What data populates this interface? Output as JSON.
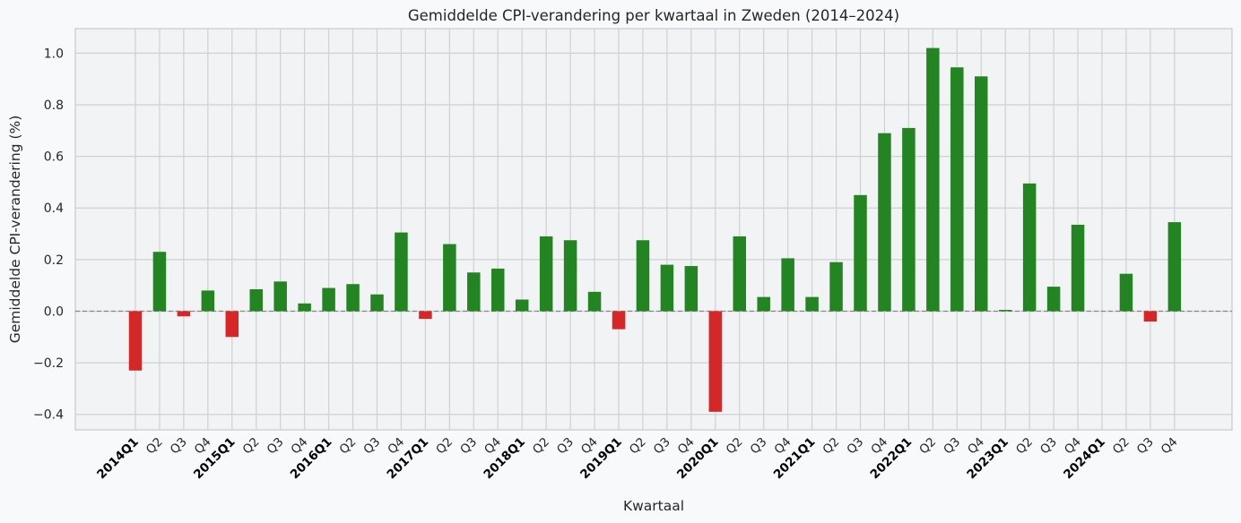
{
  "chart_data": {
    "type": "bar",
    "title": "Gemiddelde CPI-verandering per kwartaal in Zweden (2014–2024)",
    "xlabel": "Kwartaal",
    "ylabel": "Gemiddelde CPI-verandering (%)",
    "ylim": [
      -0.46,
      1.095
    ],
    "yticks": [
      "−0.4",
      "−0.2",
      "0.0",
      "0.2",
      "0.4",
      "0.6",
      "0.8",
      "1.0"
    ],
    "ytick_values": [
      -0.4,
      -0.2,
      0.0,
      0.2,
      0.4,
      0.6,
      0.8,
      1.0
    ],
    "grid": true,
    "zero_line": "dashed",
    "categories": [
      "2014Q1",
      "Q2",
      "Q3",
      "Q4",
      "2015Q1",
      "Q2",
      "Q3",
      "Q4",
      "2016Q1",
      "Q2",
      "Q3",
      "Q4",
      "2017Q1",
      "Q2",
      "Q3",
      "Q4",
      "2018Q1",
      "Q2",
      "Q3",
      "Q4",
      "2019Q1",
      "Q2",
      "Q3",
      "Q4",
      "2020Q1",
      "Q2",
      "Q3",
      "Q4",
      "2021Q1",
      "Q2",
      "Q3",
      "Q4",
      "2022Q1",
      "Q2",
      "Q3",
      "Q4",
      "2023Q1",
      "Q2",
      "Q3",
      "Q4",
      "2024Q1",
      "Q2",
      "Q3",
      "Q4"
    ],
    "values": [
      -0.23,
      0.23,
      -0.02,
      0.08,
      -0.1,
      0.085,
      0.115,
      0.03,
      0.09,
      0.105,
      0.065,
      0.305,
      -0.03,
      0.26,
      0.15,
      0.165,
      0.045,
      0.29,
      0.275,
      0.075,
      -0.07,
      0.275,
      0.18,
      0.175,
      -0.39,
      0.29,
      0.055,
      0.205,
      0.055,
      0.19,
      0.45,
      0.69,
      0.71,
      1.02,
      0.945,
      0.91,
      0.005,
      0.495,
      0.095,
      0.335,
      0.0,
      0.145,
      -0.04,
      0.345
    ],
    "colors": {
      "positive": "#228522",
      "negative": "#d62728"
    }
  }
}
